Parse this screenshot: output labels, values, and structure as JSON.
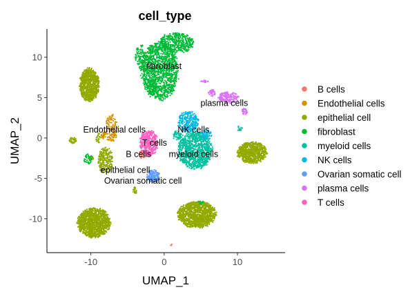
{
  "chart_data": {
    "type": "scatter",
    "title": "cell_type",
    "xlabel": "UMAP_1",
    "ylabel": "UMAP_2",
    "xlim": [
      -16,
      16.5
    ],
    "ylim": [
      -14.2,
      13.5
    ],
    "xticks": [
      -10,
      0,
      10
    ],
    "yticks": [
      -10,
      -5,
      0,
      5,
      10
    ],
    "xtick_labels": [
      "-10",
      "0",
      "10"
    ],
    "ytick_labels": [
      "-10",
      "-5",
      "0",
      "5",
      "10"
    ],
    "legend_position": "right",
    "series": [
      {
        "name": "B cells",
        "color": "#F8766D",
        "clusters": [
          {
            "cx": -3.0,
            "cy": -2.0,
            "rx": 0.5,
            "ry": 0.5,
            "n": 35
          },
          {
            "cx": 1.0,
            "cy": -13.2,
            "rx": 0.15,
            "ry": 0.15,
            "n": 3
          }
        ]
      },
      {
        "name": "Endothelial cells",
        "color": "#D39200",
        "clusters": [
          {
            "cx": -7.2,
            "cy": 1.2,
            "rx": 0.8,
            "ry": 1.7,
            "n": 140
          },
          {
            "cx": -8.3,
            "cy": 0.4,
            "rx": 0.35,
            "ry": 0.5,
            "n": 25
          }
        ]
      },
      {
        "name": "epithelial cell",
        "color": "#93AA00",
        "clusters": [
          {
            "cx": -10.2,
            "cy": 6.6,
            "rx": 1.3,
            "ry": 2.0,
            "n": 900
          },
          {
            "cx": -8.0,
            "cy": -2.8,
            "rx": 1.0,
            "ry": 1.6,
            "n": 240
          },
          {
            "cx": -12.5,
            "cy": -0.3,
            "rx": 0.5,
            "ry": 0.4,
            "n": 40
          },
          {
            "cx": -10.0,
            "cy": -2.5,
            "rx": 0.4,
            "ry": 0.3,
            "n": 25
          },
          {
            "cx": -9.6,
            "cy": -10.5,
            "rx": 2.2,
            "ry": 1.8,
            "n": 1300
          },
          {
            "cx": 4.5,
            "cy": -9.5,
            "rx": 2.6,
            "ry": 1.6,
            "n": 1200
          },
          {
            "cx": 12.0,
            "cy": -1.8,
            "rx": 2.0,
            "ry": 1.3,
            "n": 750
          },
          {
            "cx": -4.0,
            "cy": -6.5,
            "rx": 0.3,
            "ry": 0.4,
            "n": 20
          },
          {
            "cx": -9.0,
            "cy": 0.0,
            "rx": 0.3,
            "ry": 0.6,
            "n": 25
          }
        ]
      },
      {
        "name": "fibroblast",
        "color": "#00BA38",
        "clusters": [
          {
            "cx": -0.6,
            "cy": 8.3,
            "rx": 2.5,
            "ry": 3.5,
            "n": 1300
          },
          {
            "cx": 1.7,
            "cy": 11.8,
            "rx": 2.4,
            "ry": 1.2,
            "n": 450
          },
          {
            "cx": -3.2,
            "cy": 10.0,
            "rx": 0.8,
            "ry": 1.5,
            "n": 100
          },
          {
            "cx": -1.8,
            "cy": 6.5,
            "rx": 0.6,
            "ry": 0.8,
            "n": 60
          },
          {
            "cx": -10.4,
            "cy": -2.6,
            "rx": 0.6,
            "ry": 0.6,
            "n": 40
          },
          {
            "cx": 5.0,
            "cy": -8.0,
            "rx": 0.4,
            "ry": 0.2,
            "n": 15
          }
        ]
      },
      {
        "name": "myeloid cells",
        "color": "#00C19F",
        "clusters": [
          {
            "cx": 4.2,
            "cy": -1.5,
            "rx": 2.3,
            "ry": 2.3,
            "n": 1000
          },
          {
            "cx": 1.8,
            "cy": 0.3,
            "rx": 0.6,
            "ry": 0.6,
            "n": 50
          },
          {
            "cx": 10.3,
            "cy": 1.2,
            "rx": 0.4,
            "ry": 0.3,
            "n": 12
          }
        ]
      },
      {
        "name": "NK cells",
        "color": "#00B9E3",
        "clusters": [
          {
            "cx": 3.3,
            "cy": 2.0,
            "rx": 1.4,
            "ry": 1.3,
            "n": 300
          },
          {
            "cx": 5.8,
            "cy": 0.4,
            "rx": 0.7,
            "ry": 0.6,
            "n": 60
          }
        ]
      },
      {
        "name": "Ovarian somatic cell",
        "color": "#619CFF",
        "clusters": [
          {
            "cx": -1.5,
            "cy": -4.7,
            "rx": 0.9,
            "ry": 0.8,
            "n": 140
          }
        ]
      },
      {
        "name": "plasma cells",
        "color": "#DB72FB",
        "clusters": [
          {
            "cx": 8.8,
            "cy": 5.0,
            "rx": 1.4,
            "ry": 0.7,
            "n": 180
          },
          {
            "cx": 6.5,
            "cy": 5.6,
            "rx": 0.5,
            "ry": 0.4,
            "n": 40
          },
          {
            "cx": 11.0,
            "cy": 3.3,
            "rx": 0.4,
            "ry": 0.4,
            "n": 40
          },
          {
            "cx": 5.5,
            "cy": 7.0,
            "rx": 0.5,
            "ry": 0.15,
            "n": 15
          }
        ]
      },
      {
        "name": "T cells",
        "color": "#FF61C3",
        "clusters": [
          {
            "cx": -2.1,
            "cy": -0.6,
            "rx": 1.2,
            "ry": 1.6,
            "n": 380
          }
        ]
      }
    ],
    "cluster_labels": [
      {
        "text": "fibroblast",
        "x": 0.0,
        "y": 8.9
      },
      {
        "text": "plasma cells",
        "x": 8.2,
        "y": 4.3
      },
      {
        "text": "Endothelial cells",
        "x": -6.8,
        "y": 1.0
      },
      {
        "text": "NK cells",
        "x": 4.0,
        "y": 1.0
      },
      {
        "text": "T cells",
        "x": -1.3,
        "y": -0.6
      },
      {
        "text": "B cells",
        "x": -3.5,
        "y": -2.0
      },
      {
        "text": "myeloid cells",
        "x": 4.0,
        "y": -2.0
      },
      {
        "text": "epithelial cell",
        "x": -5.3,
        "y": -4.0
      },
      {
        "text": "Ovarian somatic cell",
        "x": -2.9,
        "y": -5.3
      }
    ]
  }
}
